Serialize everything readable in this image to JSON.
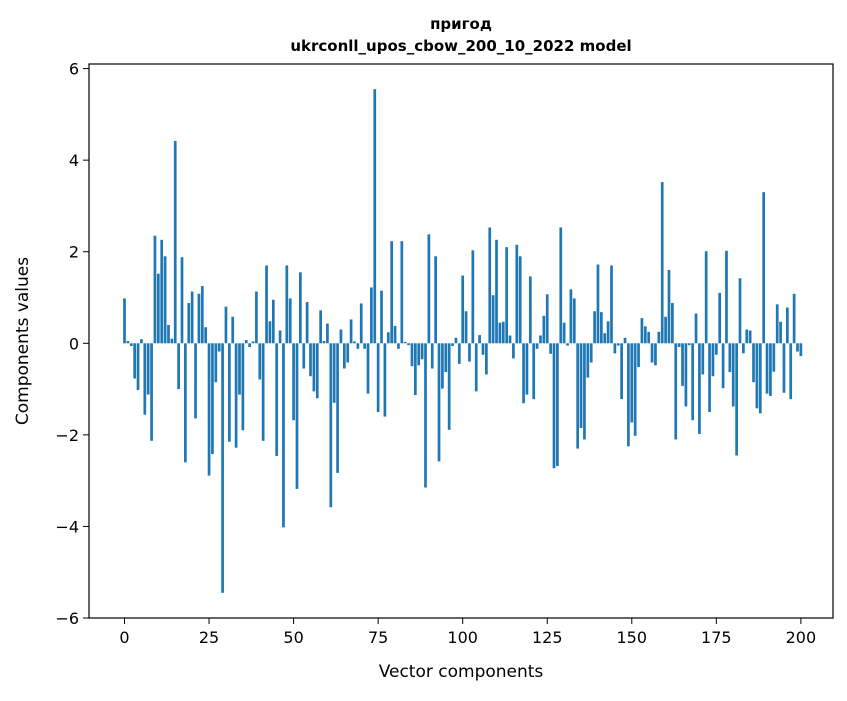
{
  "chart_data": {
    "type": "bar",
    "title": "пригод",
    "subtitle": "ukrconll_upos_cbow_200_10_2022 model",
    "xlabel": "Vector components",
    "ylabel": "Components values",
    "xlim": [
      -10.5,
      209.5
    ],
    "ylim": [
      -6,
      6.1
    ],
    "xticks": [
      0,
      25,
      50,
      75,
      100,
      125,
      150,
      175,
      200
    ],
    "yticks": [
      -6,
      -4,
      -2,
      0,
      2,
      4,
      6
    ],
    "xtick_labels": [
      "0",
      "25",
      "50",
      "75",
      "100",
      "125",
      "150",
      "175",
      "200"
    ],
    "ytick_labels": [
      "−6",
      "−4",
      "−2",
      "0",
      "2",
      "4",
      "6"
    ],
    "bar_color": "#1f77b4",
    "grid": false,
    "values": [
      0.98,
      0.05,
      -0.06,
      -0.77,
      -1.02,
      0.09,
      -1.56,
      -1.12,
      -2.13,
      2.35,
      1.52,
      2.26,
      1.9,
      0.4,
      0.1,
      4.42,
      -1.0,
      1.88,
      -2.6,
      0.88,
      1.13,
      -1.64,
      1.08,
      1.25,
      0.35,
      -2.89,
      -2.42,
      -0.85,
      -0.18,
      -5.45,
      0.8,
      -2.15,
      0.58,
      -2.28,
      -1.12,
      -1.9,
      0.07,
      -0.08,
      0.04,
      1.13,
      -0.79,
      -2.13,
      1.7,
      0.48,
      0.95,
      -2.46,
      0.28,
      -4.02,
      1.7,
      0.98,
      -1.68,
      -3.18,
      1.55,
      -0.55,
      0.9,
      -0.72,
      -1.05,
      -1.2,
      0.72,
      0.05,
      0.43,
      -3.58,
      -1.3,
      -2.83,
      0.3,
      -0.55,
      -0.42,
      0.52,
      0.04,
      -0.12,
      0.87,
      -0.12,
      -1.1,
      1.22,
      5.55,
      -1.5,
      1.15,
      -1.6,
      0.24,
      2.23,
      0.38,
      -0.12,
      2.23,
      0.03,
      -0.04,
      -0.5,
      -1.13,
      -0.48,
      -0.35,
      -3.15,
      2.38,
      -0.55,
      1.9,
      -2.58,
      -0.99,
      -0.63,
      -1.89,
      -0.06,
      0.12,
      -0.45,
      1.48,
      0.7,
      -0.4,
      2.03,
      -1.05,
      0.18,
      -0.25,
      -0.68,
      2.53,
      1.05,
      2.26,
      0.45,
      0.47,
      2.1,
      0.17,
      -0.33,
      2.15,
      1.9,
      -1.31,
      -1.12,
      1.46,
      -1.22,
      -0.12,
      0.17,
      0.6,
      1.07,
      -0.23,
      -2.73,
      -2.68,
      2.53,
      0.45,
      -0.05,
      1.18,
      0.98,
      -2.3,
      -1.85,
      -2.1,
      -0.75,
      -0.42,
      0.7,
      1.72,
      0.68,
      0.22,
      0.48,
      1.7,
      -0.22,
      -0.05,
      -1.22,
      0.12,
      -2.25,
      -1.73,
      -2.02,
      -0.52,
      0.55,
      0.37,
      0.25,
      -0.42,
      -0.48,
      0.25,
      3.52,
      0.58,
      1.6,
      0.88,
      -2.1,
      -0.08,
      -0.93,
      -1.38,
      -0.04,
      -1.68,
      0.65,
      -1.98,
      -0.68,
      2.01,
      -1.5,
      -0.72,
      -0.25,
      1.1,
      -0.98,
      2.02,
      -0.63,
      -1.38,
      -2.45,
      1.42,
      -0.22,
      0.3,
      0.28,
      -0.85,
      -1.42,
      -1.53,
      3.3,
      -1.1,
      -1.15,
      -0.62,
      0.85,
      0.47,
      -1.08,
      0.78,
      -1.22,
      1.08,
      -0.18,
      -0.28
    ]
  }
}
